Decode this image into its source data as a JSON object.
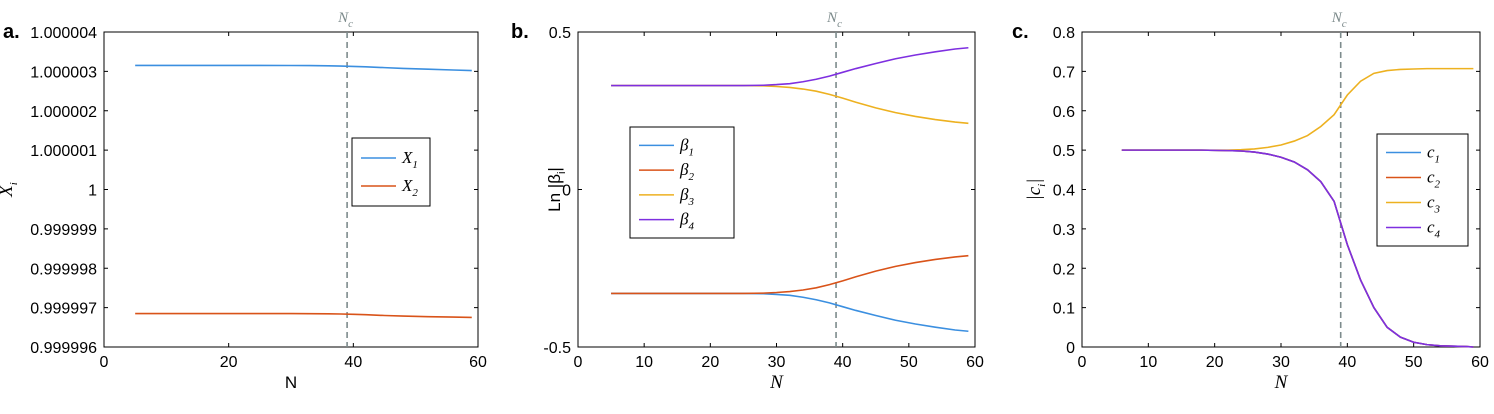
{
  "chart_data": [
    {
      "type": "line",
      "panel_label": "a.",
      "xlabel": "N",
      "ylabel": {
        "main": "X",
        "sub": "i"
      },
      "xlim": [
        0,
        60
      ],
      "ylim": [
        0.999996,
        1.000004
      ],
      "xticks": [
        "0",
        "20",
        "40",
        "60"
      ],
      "yticks": [
        "1.000004",
        "1.000003",
        "1.000002",
        "1.000001",
        "1",
        "0.999999",
        "0.999998",
        "0.999997",
        "0.999996"
      ],
      "vline": {
        "x": 39,
        "label": "N",
        "label_sub": "c"
      },
      "legend_position": "center-right",
      "grid": false,
      "series": [
        {
          "name": "X",
          "name_sub": "1",
          "color": "#3b8fe0",
          "x": [
            5,
            10,
            15,
            20,
            25,
            30,
            33,
            36,
            38,
            40,
            42,
            45,
            48,
            52,
            56,
            59
          ],
          "y": [
            1.00000315,
            1.00000315,
            1.00000315,
            1.00000315,
            1.00000315,
            1.000003149,
            1.000003147,
            1.000003142,
            1.000003135,
            1.000003125,
            1.000003115,
            1.000003095,
            1.000003075,
            1.000003055,
            1.000003035,
            1.00000302
          ]
        },
        {
          "name": "X",
          "name_sub": "2",
          "color": "#d95319",
          "x": [
            5,
            10,
            15,
            20,
            25,
            30,
            33,
            36,
            38,
            40,
            42,
            45,
            48,
            52,
            56,
            59
          ],
          "y": [
            0.99999685,
            0.99999685,
            0.99999685,
            0.99999685,
            0.99999685,
            0.999996849,
            0.999996847,
            0.999996843,
            0.999996838,
            0.99999683,
            0.99999682,
            0.9999968,
            0.999996785,
            0.99999677,
            0.99999676,
            0.99999675
          ]
        }
      ]
    },
    {
      "type": "line",
      "panel_label": "b.",
      "xlabel": "N",
      "ylabel": {
        "main": "Ln |β",
        "sub": "i",
        "end": "|"
      },
      "xlim": [
        0,
        60
      ],
      "ylim": [
        -0.5,
        0.5
      ],
      "xticks": [
        "0",
        "10",
        "20",
        "30",
        "40",
        "50",
        "60"
      ],
      "yticks": [
        "0.5",
        "0",
        "-0.5"
      ],
      "vline": {
        "x": 39,
        "label": "N",
        "label_sub": "c"
      },
      "legend_position": "center-left",
      "grid": false,
      "series": [
        {
          "name": "β",
          "name_sub": "1",
          "color": "#3b8fe0",
          "x": [
            5,
            10,
            15,
            20,
            25,
            28,
            30,
            32,
            34,
            36,
            38,
            40,
            42,
            45,
            48,
            51,
            54,
            57,
            59
          ],
          "y": [
            -0.33,
            -0.33,
            -0.33,
            -0.33,
            -0.33,
            -0.331,
            -0.333,
            -0.336,
            -0.342,
            -0.35,
            -0.36,
            -0.372,
            -0.384,
            -0.4,
            -0.415,
            -0.427,
            -0.437,
            -0.446,
            -0.45
          ]
        },
        {
          "name": "β",
          "name_sub": "2",
          "color": "#d95319",
          "x": [
            5,
            10,
            15,
            20,
            25,
            28,
            30,
            32,
            34,
            36,
            38,
            40,
            42,
            45,
            48,
            51,
            54,
            57,
            59
          ],
          "y": [
            -0.33,
            -0.33,
            -0.33,
            -0.33,
            -0.33,
            -0.329,
            -0.327,
            -0.324,
            -0.319,
            -0.312,
            -0.302,
            -0.29,
            -0.277,
            -0.259,
            -0.244,
            -0.232,
            -0.222,
            -0.214,
            -0.21
          ]
        },
        {
          "name": "β",
          "name_sub": "3",
          "color": "#edb120",
          "x": [
            5,
            10,
            15,
            20,
            25,
            28,
            30,
            32,
            34,
            36,
            38,
            40,
            42,
            45,
            48,
            51,
            54,
            57,
            59
          ],
          "y": [
            0.33,
            0.33,
            0.33,
            0.33,
            0.33,
            0.329,
            0.327,
            0.324,
            0.319,
            0.312,
            0.302,
            0.29,
            0.277,
            0.259,
            0.244,
            0.232,
            0.222,
            0.214,
            0.21
          ]
        },
        {
          "name": "β",
          "name_sub": "4",
          "color": "#7e2fe0",
          "x": [
            5,
            10,
            15,
            20,
            25,
            28,
            30,
            32,
            34,
            36,
            38,
            40,
            42,
            45,
            48,
            51,
            54,
            57,
            59
          ],
          "y": [
            0.33,
            0.33,
            0.33,
            0.33,
            0.33,
            0.331,
            0.333,
            0.336,
            0.342,
            0.35,
            0.36,
            0.372,
            0.384,
            0.4,
            0.415,
            0.427,
            0.437,
            0.446,
            0.45
          ]
        }
      ]
    },
    {
      "type": "line",
      "panel_label": "c.",
      "xlabel": "N",
      "ylabel": {
        "main": "|c",
        "sub": "i",
        "end": "|"
      },
      "xlim": [
        0,
        60
      ],
      "ylim": [
        0,
        0.8
      ],
      "xticks": [
        "0",
        "10",
        "20",
        "30",
        "40",
        "50",
        "60"
      ],
      "yticks": [
        "0.8",
        "0.7",
        "0.6",
        "0.5",
        "0.4",
        "0.3",
        "0.2",
        "0.1",
        "0"
      ],
      "vline": {
        "x": 39,
        "label": "N",
        "label_sub": "c"
      },
      "legend_position": "center-right",
      "grid": false,
      "series": [
        {
          "name": "c",
          "name_sub": "1",
          "color": "#3b8fe0",
          "x": [
            6,
            12,
            18,
            22,
            24,
            26,
            28,
            30,
            32,
            34,
            36,
            38,
            40,
            42,
            44,
            46,
            48,
            50,
            52,
            54,
            56,
            58,
            59
          ],
          "y": [
            0.5,
            0.5,
            0.5,
            0.499,
            0.498,
            0.495,
            0.49,
            0.482,
            0.47,
            0.45,
            0.42,
            0.37,
            0.26,
            0.17,
            0.1,
            0.05,
            0.025,
            0.012,
            0.006,
            0.003,
            0.002,
            0.001,
            0.0
          ]
        },
        {
          "name": "c",
          "name_sub": "2",
          "color": "#d95319",
          "x": [
            6,
            12,
            18,
            22,
            24,
            26,
            28,
            30,
            32,
            34,
            36,
            38,
            40,
            42,
            44,
            46,
            48,
            50,
            52,
            54,
            56,
            58,
            59
          ],
          "y": [
            0.5,
            0.5,
            0.5,
            0.499,
            0.498,
            0.495,
            0.49,
            0.482,
            0.47,
            0.45,
            0.42,
            0.37,
            0.26,
            0.17,
            0.1,
            0.05,
            0.025,
            0.012,
            0.006,
            0.003,
            0.002,
            0.001,
            0.0
          ]
        },
        {
          "name": "c",
          "name_sub": "3",
          "color": "#edb120",
          "x": [
            6,
            12,
            18,
            22,
            24,
            26,
            28,
            30,
            32,
            34,
            36,
            38,
            40,
            42,
            44,
            46,
            48,
            50,
            52,
            54,
            56,
            58,
            59
          ],
          "y": [
            0.5,
            0.5,
            0.5,
            0.5,
            0.501,
            0.503,
            0.507,
            0.513,
            0.523,
            0.537,
            0.56,
            0.59,
            0.64,
            0.675,
            0.695,
            0.702,
            0.705,
            0.706,
            0.707,
            0.707,
            0.707,
            0.707,
            0.707
          ]
        },
        {
          "name": "c",
          "name_sub": "4",
          "color": "#7e2fe0",
          "x": [
            6,
            12,
            18,
            22,
            24,
            26,
            28,
            30,
            32,
            34,
            36,
            38,
            40,
            42,
            44,
            46,
            48,
            50,
            52,
            54,
            56,
            58,
            59
          ],
          "y": [
            0.5,
            0.5,
            0.5,
            0.499,
            0.498,
            0.495,
            0.49,
            0.482,
            0.47,
            0.45,
            0.42,
            0.37,
            0.26,
            0.17,
            0.1,
            0.05,
            0.025,
            0.012,
            0.006,
            0.003,
            0.002,
            0.001,
            0.0
          ]
        }
      ]
    }
  ]
}
